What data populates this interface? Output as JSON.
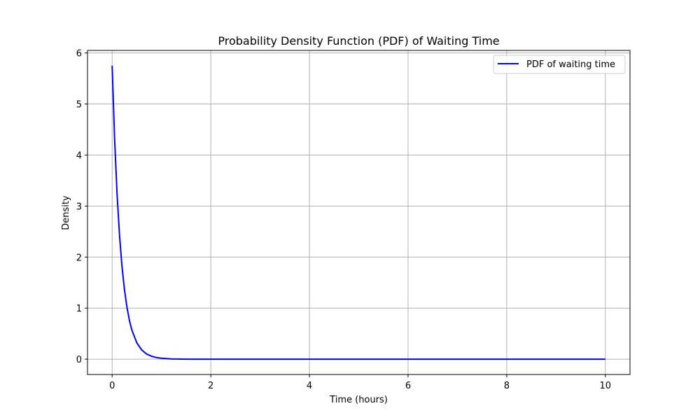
{
  "chart_data": {
    "type": "line",
    "title": "Probability Density Function (PDF) of Waiting Time",
    "xlabel": "Time (hours)",
    "ylabel": "Density",
    "xlim": [
      -0.5,
      10.5
    ],
    "ylim": [
      -0.3,
      6.05
    ],
    "xticks": [
      0,
      2,
      4,
      6,
      8,
      10
    ],
    "yticks": [
      0,
      1,
      2,
      3,
      4,
      5,
      6
    ],
    "grid": true,
    "legend_position": "top-right",
    "series": [
      {
        "name": "PDF of waiting time",
        "color": "#0000ff",
        "x": [
          0,
          0.05,
          0.1,
          0.15,
          0.2,
          0.25,
          0.3,
          0.35,
          0.4,
          0.5,
          0.6,
          0.7,
          0.8,
          0.9,
          1.0,
          1.2,
          1.4,
          1.6,
          1.8,
          2.0,
          3.0,
          4.0,
          5.0,
          6.0,
          7.0,
          8.0,
          9.0,
          10.0
        ],
        "y": [
          5.75,
          4.31,
          3.23,
          2.42,
          1.81,
          1.36,
          1.02,
          0.76,
          0.57,
          0.32,
          0.18,
          0.1,
          0.057,
          0.032,
          0.018,
          0.0056,
          0.0018,
          0.00058,
          0.00018,
          5.8e-05,
          0.0,
          0.0,
          0.0,
          0.0,
          0.0,
          0.0,
          0.0,
          0.0
        ]
      }
    ]
  }
}
